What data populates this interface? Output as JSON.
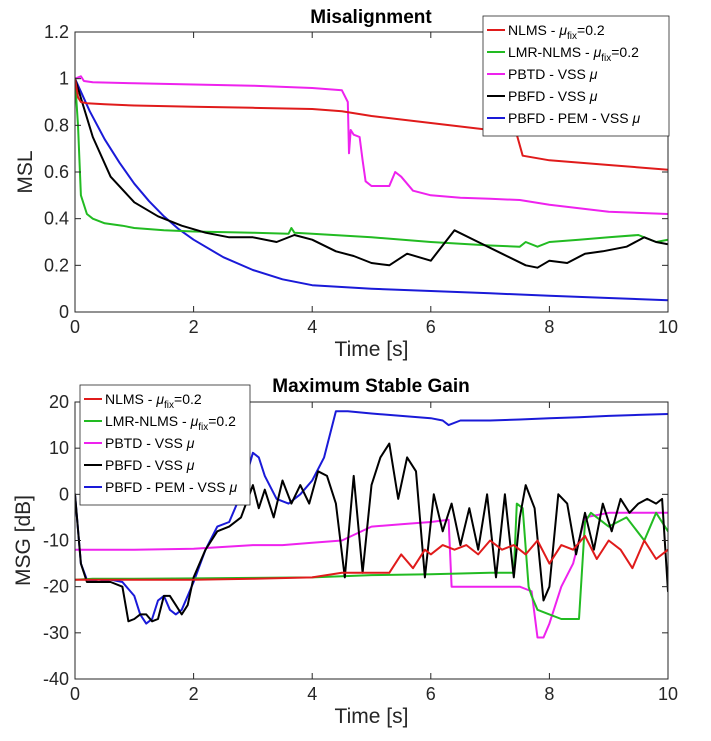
{
  "chart_data": [
    {
      "type": "line",
      "title": "Misalignment",
      "xlabel": "Time [s]",
      "ylabel": "MSL",
      "xlim": [
        0,
        10
      ],
      "ylim": [
        0,
        1.2
      ],
      "xticks": [
        0,
        2,
        4,
        6,
        8,
        10
      ],
      "xtick_labels": [
        "0",
        "2",
        "4",
        "6",
        "8",
        "10"
      ],
      "yticks": [
        0,
        0.2,
        0.4,
        0.6,
        0.8,
        1,
        1.2
      ],
      "ytick_labels": [
        "0",
        "0.2",
        "0.4",
        "0.6",
        "0.8",
        "1",
        "1.2"
      ],
      "grid": false,
      "legend_position": "top-right",
      "series": [
        {
          "name": "NLMS - μfix=0.2",
          "legend": {
            "pre": "NLMS - ",
            "mu": "μ",
            "sub": "fix",
            "post": "=0.2"
          },
          "color": "#e01b1b",
          "x": [
            0,
            0.05,
            0.1,
            0.2,
            0.5,
            1,
            2,
            3,
            4,
            4.5,
            5,
            6,
            7,
            7.3,
            7.45,
            7.55,
            8,
            9,
            10
          ],
          "y": [
            1,
            0.92,
            0.9,
            0.895,
            0.89,
            0.885,
            0.88,
            0.875,
            0.87,
            0.86,
            0.84,
            0.81,
            0.78,
            0.77,
            0.76,
            0.67,
            0.65,
            0.63,
            0.61
          ]
        },
        {
          "name": "LMR-NLMS - μfix=0.2",
          "legend": {
            "pre": "LMR-NLMS - ",
            "mu": "μ",
            "sub": "fix",
            "post": "=0.2"
          },
          "color": "#22bb22",
          "x": [
            0,
            0.05,
            0.1,
            0.2,
            0.3,
            0.5,
            0.8,
            1,
            1.5,
            2,
            3,
            3.6,
            3.65,
            3.7,
            4,
            5,
            6,
            7,
            7.5,
            7.6,
            7.8,
            8,
            8.5,
            9,
            9.5,
            9.8,
            10
          ],
          "y": [
            1,
            0.8,
            0.5,
            0.42,
            0.4,
            0.38,
            0.37,
            0.36,
            0.35,
            0.345,
            0.34,
            0.335,
            0.36,
            0.34,
            0.335,
            0.32,
            0.3,
            0.285,
            0.28,
            0.3,
            0.28,
            0.3,
            0.31,
            0.32,
            0.33,
            0.3,
            0.31
          ]
        },
        {
          "name": "PBTD - VSS μ",
          "legend": {
            "pre": "PBTD - VSS ",
            "mu": "μ",
            "sub": "",
            "post": ""
          },
          "color": "#ee22ee",
          "x": [
            0,
            0.1,
            0.15,
            0.3,
            1,
            2,
            3,
            4,
            4.5,
            4.6,
            4.62,
            4.65,
            4.7,
            4.8,
            4.85,
            4.9,
            5,
            5.3,
            5.4,
            5.5,
            5.7,
            6,
            6.5,
            7,
            7.5,
            8,
            9,
            10
          ],
          "y": [
            1,
            1.01,
            0.99,
            0.985,
            0.98,
            0.975,
            0.97,
            0.96,
            0.95,
            0.9,
            0.68,
            0.78,
            0.76,
            0.75,
            0.65,
            0.56,
            0.54,
            0.54,
            0.6,
            0.58,
            0.52,
            0.5,
            0.49,
            0.485,
            0.48,
            0.46,
            0.43,
            0.42
          ]
        },
        {
          "name": "PBFD - VSS μ",
          "legend": {
            "pre": "PBFD - VSS ",
            "mu": "μ",
            "sub": "",
            "post": ""
          },
          "color": "#000000",
          "x": [
            0,
            0.3,
            0.6,
            1,
            1.4,
            1.8,
            2.2,
            2.6,
            3,
            3.4,
            3.7,
            4,
            4.4,
            4.7,
            5,
            5.3,
            5.6,
            6,
            6.4,
            6.8,
            7.2,
            7.6,
            7.8,
            8,
            8.3,
            8.6,
            8.9,
            9.3,
            9.6,
            9.8,
            10
          ],
          "y": [
            1,
            0.75,
            0.58,
            0.47,
            0.41,
            0.37,
            0.34,
            0.32,
            0.32,
            0.3,
            0.33,
            0.31,
            0.26,
            0.24,
            0.21,
            0.2,
            0.25,
            0.22,
            0.35,
            0.3,
            0.25,
            0.2,
            0.19,
            0.22,
            0.21,
            0.25,
            0.26,
            0.28,
            0.32,
            0.3,
            0.29
          ]
        },
        {
          "name": "PBFD - PEM - VSS μ",
          "legend": {
            "pre": "PBFD - PEM - VSS ",
            "mu": "μ",
            "sub": "",
            "post": ""
          },
          "color": "#1a1ad8",
          "x": [
            0,
            0.25,
            0.5,
            0.75,
            1,
            1.25,
            1.5,
            1.75,
            2,
            2.5,
            3,
            3.5,
            4,
            5,
            6,
            7,
            8,
            9,
            10
          ],
          "y": [
            1,
            0.86,
            0.74,
            0.64,
            0.55,
            0.475,
            0.41,
            0.355,
            0.31,
            0.235,
            0.18,
            0.14,
            0.115,
            0.1,
            0.09,
            0.08,
            0.07,
            0.06,
            0.05
          ]
        }
      ]
    },
    {
      "type": "line",
      "title": "Maximum Stable Gain",
      "xlabel": "Time [s]",
      "ylabel": "MSG [dB]",
      "xlim": [
        0,
        10
      ],
      "ylim": [
        -40,
        20
      ],
      "xticks": [
        0,
        2,
        4,
        6,
        8,
        10
      ],
      "xtick_labels": [
        "0",
        "2",
        "4",
        "6",
        "8",
        "10"
      ],
      "yticks": [
        -40,
        -30,
        -20,
        -10,
        0,
        10,
        20
      ],
      "ytick_labels": [
        "-40",
        "-30",
        "-20",
        "-10",
        "0",
        "10",
        "20"
      ],
      "grid": false,
      "legend_position": "top-left",
      "series": [
        {
          "name": "NLMS - μfix=0.2",
          "legend": {
            "pre": "NLMS - ",
            "mu": "μ",
            "sub": "fix",
            "post": "=0.2"
          },
          "color": "#e01b1b",
          "x": [
            0,
            1,
            2,
            3,
            4,
            4.5,
            5,
            5.3,
            5.5,
            5.7,
            5.9,
            6,
            6.2,
            6.4,
            6.6,
            6.8,
            7,
            7.2,
            7.4,
            7.6,
            7.8,
            8,
            8.2,
            8.4,
            8.6,
            8.8,
            9,
            9.2,
            9.4,
            9.6,
            9.8,
            10
          ],
          "y": [
            -18.5,
            -18.5,
            -18.5,
            -18.3,
            -18,
            -17,
            -17,
            -17,
            -13,
            -16,
            -12,
            -13,
            -11,
            -12,
            -11,
            -13,
            -10,
            -12,
            -11,
            -13,
            -10,
            -15,
            -11,
            -12,
            -9,
            -14,
            -10,
            -12,
            -16,
            -10,
            -14,
            -12
          ]
        },
        {
          "name": "LMR-NLMS - μfix=0.2",
          "legend": {
            "pre": "LMR-NLMS - ",
            "mu": "μ",
            "sub": "fix",
            "post": "=0.2"
          },
          "color": "#22bb22",
          "x": [
            0,
            0.3,
            1,
            2,
            3,
            4,
            5,
            6,
            7,
            7.4,
            7.45,
            7.55,
            7.65,
            7.7,
            7.8,
            8,
            8.2,
            8.5,
            8.6,
            8.7,
            9,
            9.3,
            9.6,
            9.8,
            10
          ],
          "y": [
            -18.5,
            -18.3,
            -18.3,
            -18.2,
            -18.1,
            -18,
            -17.5,
            -17.3,
            -17,
            -17,
            -2,
            -3,
            -20,
            -22,
            -25,
            -26,
            -27,
            -27,
            -6,
            -4,
            -7,
            -5,
            -10,
            -4,
            -8
          ]
        },
        {
          "name": "PBTD - VSS μ",
          "legend": {
            "pre": "PBTD - VSS ",
            "mu": "μ",
            "sub": "",
            "post": ""
          },
          "color": "#ee22ee",
          "x": [
            0,
            1,
            2,
            3,
            3.5,
            4,
            4.5,
            5,
            5.5,
            6,
            6.3,
            6.35,
            7.5,
            7.6,
            7.7,
            7.8,
            7.9,
            8,
            8.2,
            8.4,
            8.5,
            8.6,
            9,
            10
          ],
          "y": [
            -12,
            -12,
            -11.8,
            -11,
            -11,
            -10.5,
            -10,
            -7,
            -6.5,
            -6,
            -5.5,
            -20,
            -20,
            -20.5,
            -21,
            -31,
            -31,
            -28,
            -20,
            -15,
            -10,
            -5,
            -4,
            -4
          ]
        },
        {
          "name": "PBFD - VSS μ",
          "legend": {
            "pre": "PBFD - VSS ",
            "mu": "μ",
            "sub": "",
            "post": ""
          },
          "color": "#000000",
          "x": [
            0,
            0.1,
            0.2,
            0.4,
            0.6,
            0.8,
            0.9,
            1,
            1.1,
            1.2,
            1.3,
            1.4,
            1.5,
            1.6,
            1.7,
            1.8,
            1.9,
            2,
            2.2,
            2.4,
            2.6,
            2.8,
            3,
            3.1,
            3.2,
            3.35,
            3.5,
            3.65,
            3.8,
            3.95,
            4.1,
            4.25,
            4.4,
            4.55,
            4.7,
            4.85,
            5,
            5.15,
            5.3,
            5.45,
            5.6,
            5.75,
            5.9,
            6.05,
            6.2,
            6.35,
            6.5,
            6.65,
            6.8,
            6.95,
            7.1,
            7.25,
            7.4,
            7.5,
            7.6,
            7.75,
            7.9,
            8,
            8.15,
            8.3,
            8.45,
            8.6,
            8.75,
            8.9,
            9.05,
            9.2,
            9.35,
            9.5,
            9.65,
            9.8,
            9.9,
            10
          ],
          "y": [
            0,
            -15,
            -19,
            -19,
            -19,
            -20,
            -27.5,
            -27,
            -26,
            -26,
            -27.5,
            -27,
            -22,
            -22,
            -24,
            -26,
            -24,
            -18,
            -12,
            -8,
            -7,
            -5,
            2,
            -3,
            1,
            -5,
            3,
            -2,
            2,
            -2,
            5,
            4,
            -2,
            -18,
            4,
            -17,
            2,
            8,
            11,
            -1,
            8,
            5,
            -18,
            0,
            -8,
            -2,
            -11,
            -3,
            -12,
            0,
            -18,
            0,
            -18,
            -5,
            2,
            -3,
            -23,
            -20,
            0,
            -2,
            -13,
            -4,
            -12,
            -2,
            -8,
            -1,
            -4,
            -2,
            -1,
            -2,
            -1,
            -21
          ]
        },
        {
          "name": "PBFD - PEM - VSS μ",
          "legend": {
            "pre": "PBFD - PEM - VSS ",
            "mu": "μ",
            "sub": "",
            "post": ""
          },
          "color": "#1a1ad8",
          "x": [
            0,
            0.1,
            0.2,
            0.4,
            0.6,
            0.8,
            1,
            1.1,
            1.2,
            1.3,
            1.4,
            1.5,
            1.6,
            1.7,
            1.8,
            1.9,
            2,
            2.2,
            2.4,
            2.6,
            2.8,
            3,
            3.1,
            3.2,
            3.4,
            3.6,
            3.8,
            4,
            4.2,
            4.4,
            4.6,
            5,
            5.5,
            6,
            6.2,
            6.3,
            6.5,
            7,
            7.5,
            8,
            8.5,
            9,
            9.5,
            10
          ],
          "y": [
            0,
            -15,
            -18.5,
            -19,
            -18.5,
            -19,
            -22,
            -26,
            -28,
            -27,
            -23,
            -22,
            -25,
            -26,
            -25,
            -22,
            -19,
            -12,
            -7,
            -6,
            0,
            9,
            8,
            4,
            -1,
            -2,
            0,
            3,
            8,
            18,
            18,
            17.5,
            17,
            16.5,
            16,
            15,
            16,
            16,
            16.2,
            16.5,
            16.7,
            17,
            17.2,
            17.4
          ]
        }
      ]
    }
  ]
}
